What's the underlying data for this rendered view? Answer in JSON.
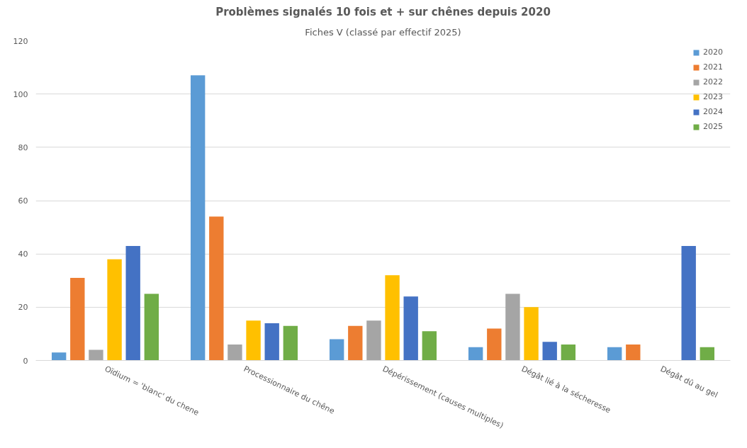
{
  "chart_data": {
    "type": "bar",
    "title": "Problèmes signalés 10 fois et + sur chênes depuis 2020",
    "subtitle": "Fiches V (classé par effectif 2025)",
    "categories": [
      "Oïdium = 'blanc' du chene",
      "Processionnaire du chêne",
      "Dépérissement (causes multiples)",
      "Dégât lié à la sécheresse",
      "Dégât dû au gel"
    ],
    "series": [
      {
        "name": "2020",
        "color": "#5b9bd5",
        "values": [
          3,
          107,
          8,
          5,
          5
        ]
      },
      {
        "name": "2021",
        "color": "#ed7d31",
        "values": [
          31,
          54,
          13,
          12,
          6
        ]
      },
      {
        "name": "2022",
        "color": "#a5a5a5",
        "values": [
          4,
          6,
          15,
          25,
          null
        ]
      },
      {
        "name": "2023",
        "color": "#ffc000",
        "values": [
          38,
          15,
          32,
          20,
          null
        ]
      },
      {
        "name": "2024",
        "color": "#4472c4",
        "values": [
          43,
          14,
          24,
          7,
          43
        ]
      },
      {
        "name": "2025",
        "color": "#70ad47",
        "values": [
          25,
          13,
          11,
          6,
          5
        ]
      }
    ],
    "ylim": [
      0,
      120
    ],
    "yticks": [
      0,
      20,
      40,
      60,
      80,
      100,
      120
    ],
    "grid": "y",
    "legend": "top right"
  }
}
